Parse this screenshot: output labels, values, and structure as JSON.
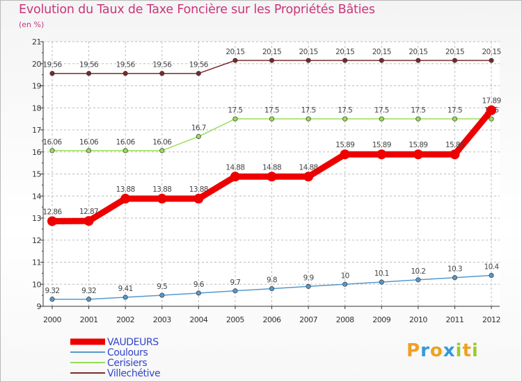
{
  "chart_data": {
    "type": "line",
    "title": "Evolution du Taux de Taxe Foncière sur les Propriétés Bâties",
    "ylabel": "(en %)",
    "xlabel": "",
    "categories": [
      "2000",
      "2001",
      "2002",
      "2003",
      "2004",
      "2005",
      "2006",
      "2007",
      "2008",
      "2009",
      "2010",
      "2011",
      "2012"
    ],
    "ylim": [
      9,
      21
    ],
    "yticks": [
      "9",
      "10",
      "11",
      "12",
      "13",
      "14",
      "15",
      "16",
      "17",
      "18",
      "19",
      "20",
      "21"
    ],
    "grid": true,
    "legend": "bottom-left",
    "series": [
      {
        "name": "Villechétive",
        "color": "#7a2a2a",
        "width": 1.5,
        "values": [
          19.56,
          19.56,
          19.56,
          19.56,
          19.56,
          20.15,
          20.15,
          20.15,
          20.15,
          20.15,
          20.15,
          20.15,
          20.15
        ],
        "labels": [
          "19.56",
          "19.56",
          "19.56",
          "19.56",
          "19.56",
          "20.15",
          "20.15",
          "20.15",
          "20.15",
          "20.15",
          "20.15",
          "20.15",
          "20.15"
        ]
      },
      {
        "name": "Cerisiers",
        "color": "#99dd55",
        "width": 1.5,
        "values": [
          16.06,
          16.06,
          16.06,
          16.06,
          16.7,
          17.5,
          17.5,
          17.5,
          17.5,
          17.5,
          17.5,
          17.5,
          17.5
        ],
        "labels": [
          "16.06",
          "16.06",
          "16.06",
          "16.06",
          "16.7",
          "17.5",
          "17.5",
          "17.5",
          "17.5",
          "17.5",
          "17.5",
          "17.5",
          "17.5"
        ]
      },
      {
        "name": "VAUDEURS",
        "color": "#ee0000",
        "width": 9,
        "values": [
          12.86,
          12.87,
          13.88,
          13.88,
          13.88,
          14.88,
          14.88,
          14.88,
          15.89,
          15.89,
          15.89,
          15.89,
          17.89
        ],
        "labels": [
          "12.86",
          "12.87",
          "13.88",
          "13.88",
          "13.88",
          "14.88",
          "14.88",
          "14.88",
          "15.89",
          "15.89",
          "15.89",
          "15.89",
          "17.89"
        ]
      },
      {
        "name": "Coulours",
        "color": "#5599cc",
        "width": 1.5,
        "values": [
          9.32,
          9.32,
          9.41,
          9.5,
          9.6,
          9.7,
          9.8,
          9.9,
          10,
          10.1,
          10.2,
          10.3,
          10.4
        ],
        "labels": [
          "9.32",
          "9.32",
          "9.41",
          "9.5",
          "9.6",
          "9.7",
          "9.8",
          "9.9",
          "10",
          "10.1",
          "10.2",
          "10.3",
          "10.4"
        ]
      }
    ],
    "legend_entries": [
      {
        "name": "VAUDEURS",
        "color": "#ee0000",
        "width": 9
      },
      {
        "name": "Coulours",
        "color": "#5599cc",
        "width": 2
      },
      {
        "name": "Cerisiers",
        "color": "#99dd55",
        "width": 2
      },
      {
        "name": "Villechétive",
        "color": "#7a2a2a",
        "width": 2
      }
    ]
  },
  "branding": {
    "logo_letters": [
      "P",
      "r",
      "o",
      "x",
      "i",
      "t",
      "i"
    ],
    "logo_colors": [
      "#f0a020",
      "#3399dd",
      "#f0a020",
      "#3399dd",
      "#99cc33",
      "#f0a020",
      "#99cc33"
    ]
  }
}
